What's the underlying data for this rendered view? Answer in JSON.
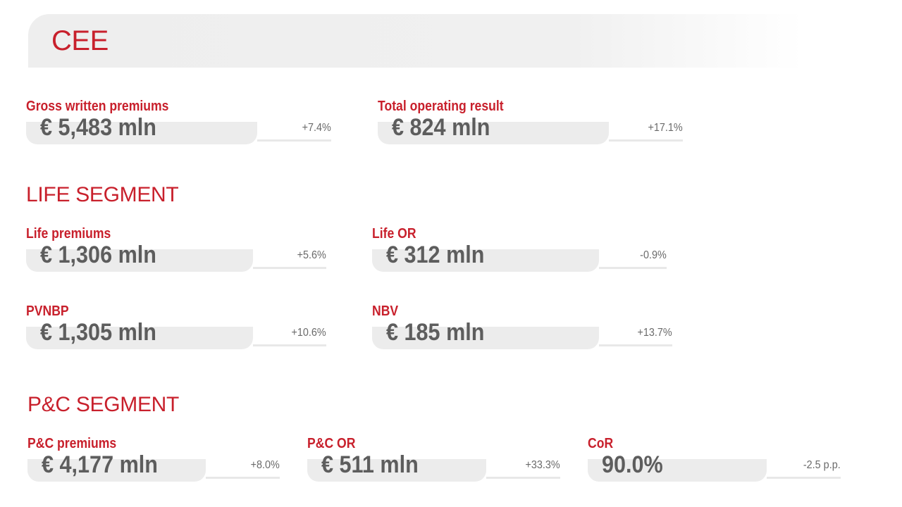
{
  "region": {
    "title": "CEE"
  },
  "overview": {
    "gwp": {
      "label": "Gross written premiums",
      "value": "€ 5,483 mln",
      "change": "+7.4%"
    },
    "tor": {
      "label": "Total operating result",
      "value": "€ 824 mln",
      "change": "+17.1%"
    }
  },
  "life": {
    "title": "LIFE SEGMENT",
    "premiums": {
      "label": "Life premiums",
      "value": "€ 1,306 mln",
      "change": "+5.6%"
    },
    "or": {
      "label": "Life OR",
      "value": "€ 312 mln",
      "change": "-0.9%"
    },
    "pvnbp": {
      "label": "PVNBP",
      "value": "€ 1,305 mln",
      "change": "+10.6%"
    },
    "nbv": {
      "label": "NBV",
      "value": "€ 185 mln",
      "change": "+13.7%"
    }
  },
  "pc": {
    "title": "P&C SEGMENT",
    "premiums": {
      "label": "P&C premiums",
      "value": "€ 4,177 mln",
      "change": "+8.0%"
    },
    "or": {
      "label": "P&C OR",
      "value": "€ 511 mln",
      "change": "+33.3%"
    },
    "cor": {
      "label": "CoR",
      "value": "90.0%",
      "change": "-2.5 p.p."
    }
  },
  "colors": {
    "accent": "#c8202c",
    "value_text": "#5d5d5d",
    "pill": "#ececec"
  }
}
